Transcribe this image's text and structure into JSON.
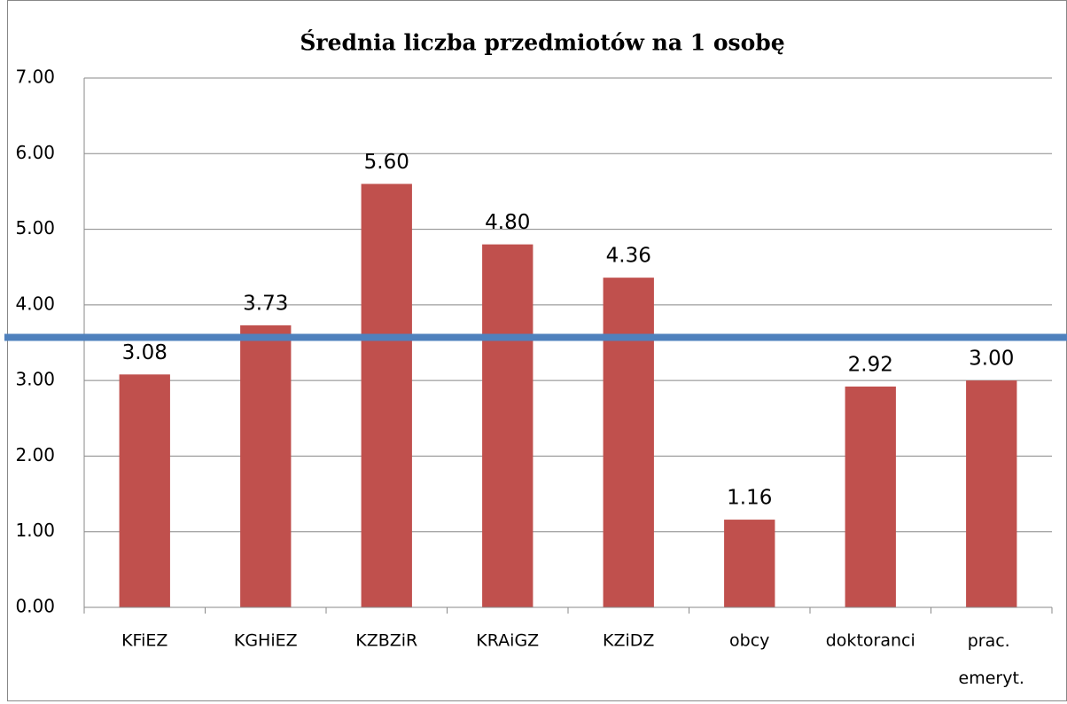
{
  "chart_data": {
    "type": "bar",
    "title": "Średnia liczba przedmiotów na 1 osobę",
    "categories": [
      "KFiEZ",
      "KGHiEZ",
      "KZBZiR",
      "KRAiGZ",
      "KZiDZ",
      "obcy",
      "doktoranci",
      "prac. emeryt."
    ],
    "values": [
      3.08,
      3.73,
      5.6,
      4.8,
      4.36,
      1.16,
      2.92,
      3
    ],
    "value_labels": [
      "3.08",
      "3.73",
      "5.60",
      "4.80",
      "4.36",
      "1.16",
      "2.92",
      "3.00"
    ],
    "color": "#c0504d",
    "hline": {
      "value": 3.57,
      "color": "#4f81bd"
    },
    "ylim": [
      0,
      7
    ],
    "yticks": [
      {
        "value": 0,
        "label": "0.00"
      },
      {
        "value": 1,
        "label": "1.00"
      },
      {
        "value": 2,
        "label": "2.00"
      },
      {
        "value": 3,
        "label": "3.00"
      },
      {
        "value": 4,
        "label": "4.00"
      },
      {
        "value": 5,
        "label": "5.00"
      },
      {
        "value": 6,
        "label": "6.00"
      },
      {
        "value": 7,
        "label": "7.00"
      }
    ],
    "grid": true
  }
}
